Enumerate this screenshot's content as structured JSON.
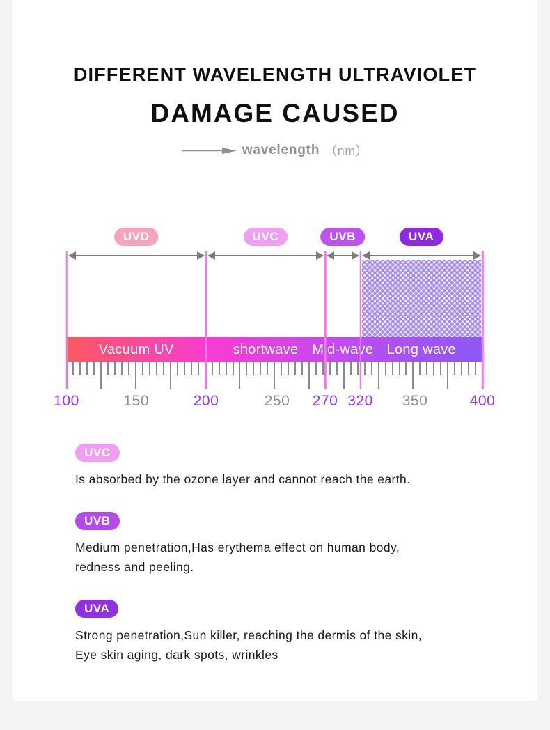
{
  "page": {
    "title_line1": "DIFFERENT WAVELENGTH ULTRAVIOLET",
    "title_line2": "DAMAGE CAUSED",
    "axis_caption": {
      "label": "wavelength",
      "unit": "（nm）"
    }
  },
  "chart_data": {
    "type": "band-ruler-diagram",
    "x_axis": {
      "label": "wavelength",
      "unit": "nm",
      "range": [
        100,
        400
      ]
    },
    "bands": [
      {
        "name": "UVD",
        "badge_color": "#f6a3bc",
        "range_nm": [
          100,
          200
        ],
        "bar_label": "Vacuum UV",
        "dotted_area": false
      },
      {
        "name": "UVC",
        "badge_color": "#f09ff2",
        "range_nm": [
          200,
          270
        ],
        "bar_label": "shortwave",
        "dotted_area": false
      },
      {
        "name": "UVB",
        "badge_color": "#bd53ee",
        "range_nm": [
          270,
          320
        ],
        "bar_label": "Mid-wave",
        "dotted_area": false
      },
      {
        "name": "UVA",
        "badge_color": "#8f2ae0",
        "range_nm": [
          320,
          400
        ],
        "bar_label": "Long wave",
        "dotted_area": true
      }
    ],
    "bar_gradient": [
      "#f95960",
      "#f83bd4",
      "#c44af0",
      "#8b59f5"
    ],
    "boundary_line_color": "#f175ee",
    "dot_pattern_color": "#a78ce9",
    "axis_labels": [
      {
        "value": 100,
        "highlight": true
      },
      {
        "value": 150,
        "highlight": false
      },
      {
        "value": 200,
        "highlight": true
      },
      {
        "value": 250,
        "highlight": false
      },
      {
        "value": 270,
        "highlight": true
      },
      {
        "value": 320,
        "highlight": true
      },
      {
        "value": 350,
        "highlight": false
      },
      {
        "value": 400,
        "highlight": true
      }
    ],
    "highlight_color": "#9c33e6",
    "muted_color": "#8f8f8f"
  },
  "descriptions": [
    {
      "badge": "UVC",
      "badge_color": "#ef9ef2",
      "lines": [
        "Is absorbed by the ozone layer and cannot reach the earth."
      ]
    },
    {
      "badge": "UVB",
      "badge_color": "#b44be8",
      "lines": [
        "Medium penetration,Has erythema effect on human body,",
        "redness and peeling."
      ]
    },
    {
      "badge": "UVA",
      "badge_color": "#9130e2",
      "lines": [
        "Strong penetration,Sun killer, reaching the dermis of the skin,",
        "Eye skin aging, dark spots, wrinkles"
      ]
    }
  ]
}
